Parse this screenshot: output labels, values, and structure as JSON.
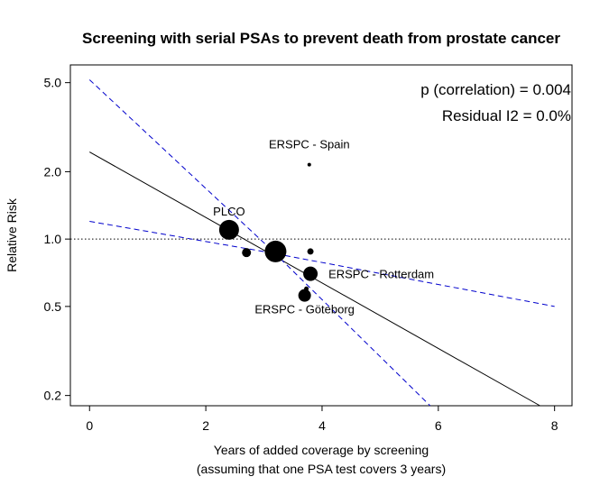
{
  "chart_data": {
    "type": "scatter",
    "title": "Screening with serial PSAs to prevent death from prostate cancer",
    "xlabel": "Years of added coverage by screening",
    "xlabel2": "(assuming that one PSA test covers 3 years)",
    "ylabel": "Relative Risk",
    "x_ticks": [
      0,
      2,
      4,
      6,
      8
    ],
    "y_ticks": [
      0.2,
      0.5,
      1.0,
      2.0,
      5.0
    ],
    "y_tick_labels": [
      "0.2",
      "0.5",
      "1.0",
      "2.0",
      "5.0"
    ],
    "xlim": [
      -0.33,
      8.3
    ],
    "ylim": [
      0.18,
      6.0
    ],
    "y_scale": "log",
    "grid": false,
    "reference_line": {
      "y": 1.0,
      "style": "dotted"
    },
    "annotations": [
      "p (correlation) = 0.004",
      "Residual I2 = 0.0%"
    ],
    "points": [
      {
        "label": "PLCO",
        "x": 2.4,
        "y": 1.1,
        "size": 11
      },
      {
        "label": "",
        "x": 3.2,
        "y": 0.88,
        "size": 12
      },
      {
        "label": "",
        "x": 2.7,
        "y": 0.87,
        "size": 5
      },
      {
        "label": "ERSPC - Rotterdam",
        "x": 3.8,
        "y": 0.7,
        "size": 8
      },
      {
        "label": "ERSPC - Göteborg",
        "x": 3.7,
        "y": 0.56,
        "size": 7
      },
      {
        "label": "",
        "x": 3.8,
        "y": 0.88,
        "size": 3.5
      },
      {
        "label": "",
        "x": 3.73,
        "y": 0.6,
        "size": 2.5
      },
      {
        "label": "ERSPC - Spain",
        "x": 3.78,
        "y": 2.15,
        "size": 2
      }
    ],
    "regression_line": {
      "x": [
        0,
        7.75
      ],
      "y": [
        2.45,
        0.18
      ]
    },
    "ci_upper": {
      "x": [
        0,
        3.1,
        5.86
      ],
      "y": [
        5.15,
        0.91,
        0.18
      ]
    },
    "ci_lower": {
      "x": [
        0,
        3.1,
        8.0
      ],
      "y": [
        1.2,
        0.87,
        0.5
      ]
    },
    "colors": {
      "points": "#000000",
      "regression": "#000000",
      "ci": "#0000cc",
      "reference": "#000000"
    }
  }
}
